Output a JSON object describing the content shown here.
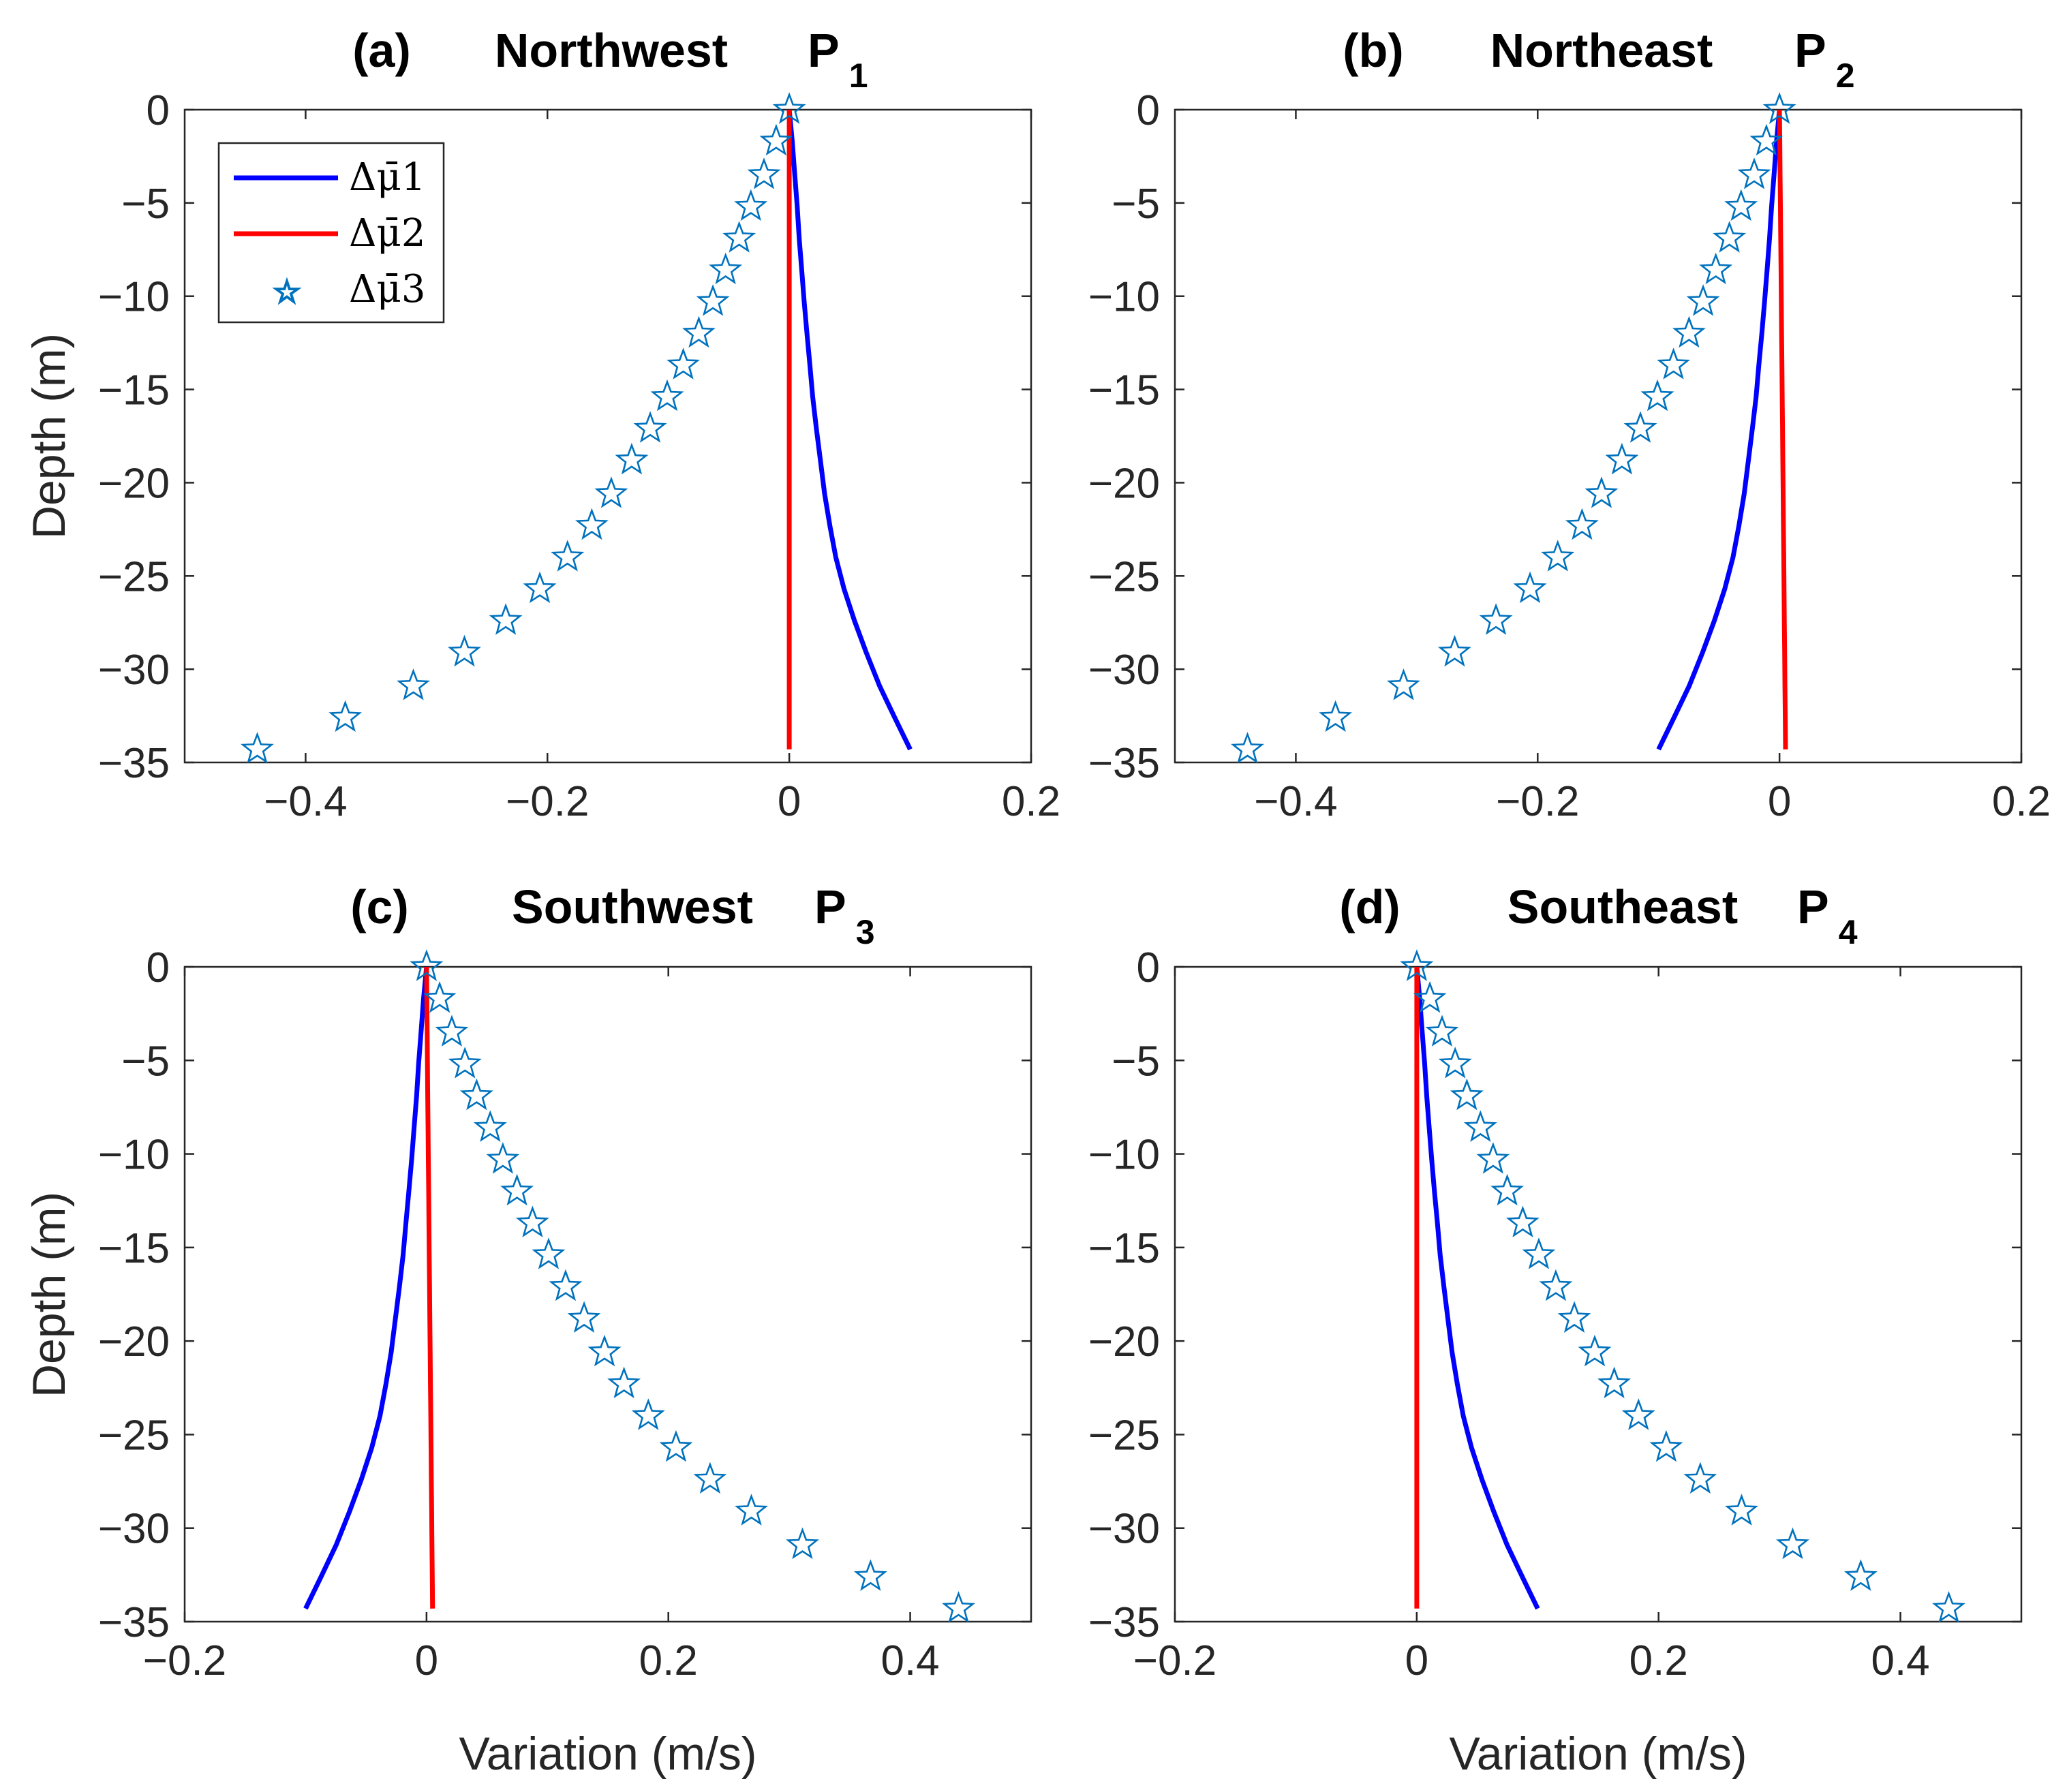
{
  "chart_data": [
    {
      "type": "line",
      "panel": "(a)",
      "title": "Northwest",
      "point_label": "P",
      "point_sub": "1",
      "xlabel": "",
      "ylabel": "Depth (m)",
      "xlim": [
        -0.5,
        0.2
      ],
      "ylim": [
        -35,
        0
      ],
      "xticks": [
        -0.4,
        -0.2,
        0,
        0.2
      ],
      "yticks": [
        0,
        -5,
        -10,
        -15,
        -20,
        -25,
        -30,
        -35
      ],
      "legend": true,
      "series": [
        {
          "name": "Δμ̄1",
          "style": "line",
          "color": "#0000FF",
          "end_value": 0.1
        },
        {
          "name": "Δμ̄2",
          "style": "line",
          "color": "#FF0000",
          "end_value": 0.0
        },
        {
          "name": "Δμ̄3",
          "style": "marker",
          "color": "#0072BD",
          "end_value": -0.44
        }
      ]
    },
    {
      "type": "line",
      "panel": "(b)",
      "title": "Northeast",
      "point_label": "P",
      "point_sub": "2",
      "xlabel": "",
      "ylabel": "",
      "xlim": [
        -0.5,
        0.2
      ],
      "ylim": [
        -35,
        0
      ],
      "xticks": [
        -0.4,
        -0.2,
        0,
        0.2
      ],
      "yticks": [
        0,
        -5,
        -10,
        -15,
        -20,
        -25,
        -30,
        -35
      ],
      "legend": false,
      "series": [
        {
          "name": "Δμ̄1",
          "style": "line",
          "color": "#0000FF",
          "end_value": -0.1
        },
        {
          "name": "Δμ̄2",
          "style": "line",
          "color": "#FF0000",
          "end_value": 0.005
        },
        {
          "name": "Δμ̄3",
          "style": "marker",
          "color": "#0072BD",
          "end_value": -0.44
        }
      ]
    },
    {
      "type": "line",
      "panel": "(c)",
      "title": "Southwest",
      "point_label": "P",
      "point_sub": "3",
      "xlabel": "Variation (m/s)",
      "ylabel": "Depth (m)",
      "xlim": [
        -0.2,
        0.5
      ],
      "ylim": [
        -35,
        0
      ],
      "xticks": [
        -0.2,
        0,
        0.2,
        0.4
      ],
      "yticks": [
        0,
        -5,
        -10,
        -15,
        -20,
        -25,
        -30,
        -35
      ],
      "legend": false,
      "series": [
        {
          "name": "Δμ̄1",
          "style": "line",
          "color": "#0000FF",
          "end_value": -0.1
        },
        {
          "name": "Δμ̄2",
          "style": "line",
          "color": "#FF0000",
          "end_value": 0.005
        },
        {
          "name": "Δμ̄3",
          "style": "marker",
          "color": "#0072BD",
          "end_value": 0.44
        }
      ]
    },
    {
      "type": "line",
      "panel": "(d)",
      "title": "Southeast",
      "point_label": "P",
      "point_sub": "4",
      "xlabel": "Variation (m/s)",
      "ylabel": "",
      "xlim": [
        -0.2,
        0.5
      ],
      "ylim": [
        -35,
        0
      ],
      "xticks": [
        -0.2,
        0,
        0.2,
        0.4
      ],
      "yticks": [
        0,
        -5,
        -10,
        -15,
        -20,
        -25,
        -30,
        -35
      ],
      "legend": false,
      "series": [
        {
          "name": "Δμ̄1",
          "style": "line",
          "color": "#0000FF",
          "end_value": 0.1
        },
        {
          "name": "Δμ̄2",
          "style": "line",
          "color": "#FF0000",
          "end_value": 0.0
        },
        {
          "name": "Δμ̄3",
          "style": "marker",
          "color": "#0072BD",
          "end_value": 0.44
        }
      ]
    }
  ],
  "depth_samples": [
    0,
    -1.7,
    -3.5,
    -5.2,
    -6.9,
    -8.6,
    -10.3,
    -12.0,
    -13.7,
    -15.4,
    -17.1,
    -18.8,
    -20.6,
    -22.3,
    -24.0,
    -25.7,
    -27.4,
    -29.1,
    -30.9,
    -32.6,
    -34.3
  ],
  "marker_profile_abs": [
    0.0,
    0.0108,
    0.0208,
    0.0316,
    0.0412,
    0.0524,
    0.0628,
    0.0744,
    0.0872,
    0.1004,
    0.1144,
    0.1296,
    0.1464,
    0.1624,
    0.1824,
    0.2052,
    0.2332,
    0.2672,
    0.3092,
    0.3652,
    0.4376
  ],
  "line_profile_abs": [
    0.0,
    0.0024,
    0.0044,
    0.0064,
    0.008,
    0.01,
    0.012,
    0.0142,
    0.0166,
    0.0188,
    0.0218,
    0.025,
    0.0284,
    0.0326,
    0.0374,
    0.044,
    0.0524,
    0.0618,
    0.0726,
    0.0848,
    0.0972
  ]
}
